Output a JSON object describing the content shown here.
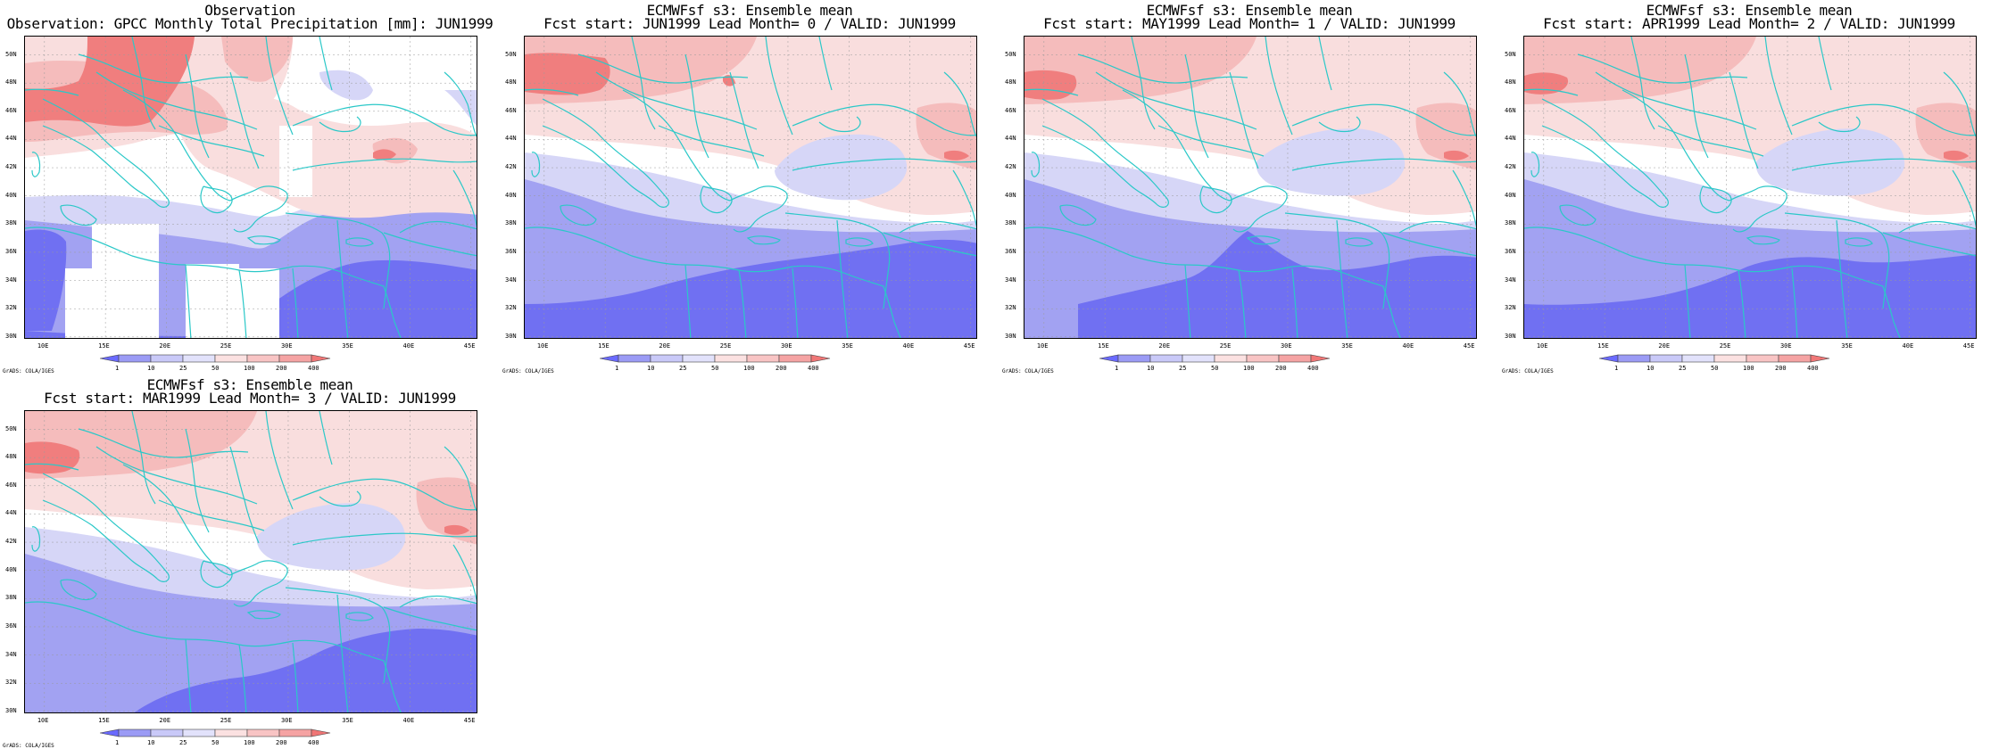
{
  "panels": [
    {
      "title1": "Observation",
      "title2": "Observation: GPCC Monthly Total Precipitation [mm]: JUN1999",
      "variant": "obs"
    },
    {
      "title1": "ECMWFsf s3: Ensemble mean",
      "title2": "Fcst start: JUN1999  Lead Month= 0 / VALID: JUN1999",
      "variant": "f0"
    },
    {
      "title1": "ECMWFsf s3: Ensemble mean",
      "title2": "Fcst start: MAY1999  Lead Month= 1 / VALID: JUN1999",
      "variant": "f1"
    },
    {
      "title1": "ECMWFsf s3: Ensemble mean",
      "title2": "Fcst start: APR1999  Lead Month= 2 / VALID: JUN1999",
      "variant": "f2"
    },
    {
      "title1": "ECMWFsf s3: Ensemble mean",
      "title2": "Fcst start: MAR1999  Lead Month= 3 / VALID: JUN1999",
      "variant": "f3"
    }
  ],
  "lat_labels": [
    "50N",
    "48N",
    "46N",
    "44N",
    "42N",
    "40N",
    "38N",
    "36N",
    "34N",
    "32N",
    "30N"
  ],
  "lon_labels": [
    "10E",
    "15E",
    "20E",
    "25E",
    "30E",
    "35E",
    "40E",
    "45E"
  ],
  "colorbar_labels": [
    "1",
    "10",
    "25",
    "50",
    "100",
    "200",
    "400"
  ],
  "colorbar_colors": [
    "#6a6aff",
    "#9b9bf5",
    "#c9c9f8",
    "#e2e2fb",
    "#fbe1e1",
    "#f8c4c4",
    "#f5a3a3",
    "#f07676"
  ],
  "footer": "GrADS: COLA/IGES",
  "colors": {
    "coast": "#2bc8c8",
    "blue_dark": "#7070f2",
    "blue_mid": "#a2a2f2",
    "blue_light": "#d6d6f7",
    "pink_light": "#f9dede",
    "pink_mid": "#f5bcbc",
    "red": "#f07e7e"
  }
}
